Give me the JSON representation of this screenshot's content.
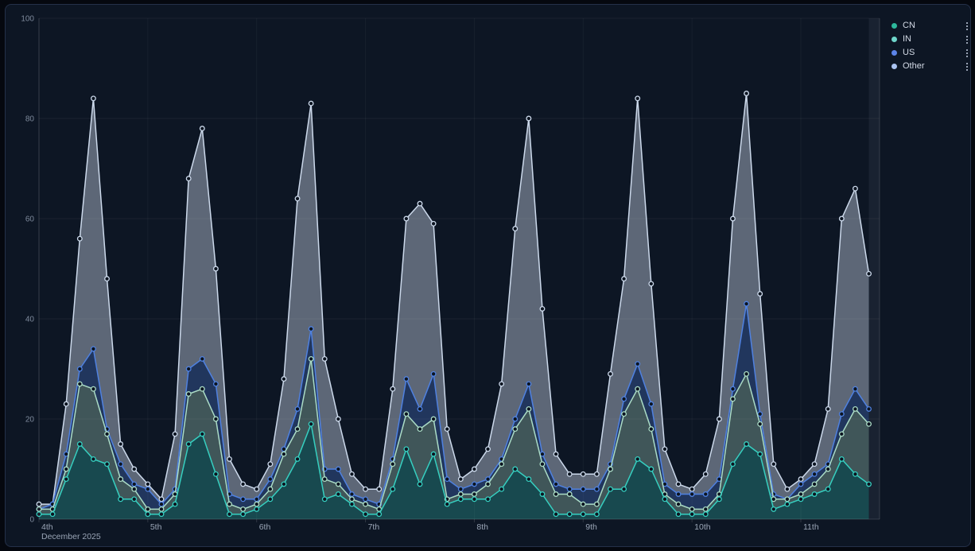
{
  "panel": {
    "title": ""
  },
  "legend": {
    "position": "top-right",
    "items": [
      {
        "label": "CN",
        "dot_color": "#2db89c"
      },
      {
        "label": "IN",
        "dot_color": "#6fd6cb"
      },
      {
        "label": "US",
        "dot_color": "#5c84e8"
      },
      {
        "label": "Other",
        "dot_color": "#abc4f2"
      }
    ],
    "action_icon": "vertical-dots"
  },
  "axes": {
    "y_tick_labels": [
      "0",
      "20",
      "40",
      "60",
      "80",
      "100"
    ],
    "x_tick_labels": [
      "4th",
      "5th",
      "6th",
      "7th",
      "8th",
      "9th",
      "10th",
      "11th"
    ],
    "x_context_label": "December 2025",
    "y_label_color": "#7e8a9c",
    "x_label_color": "#9aa5b6"
  },
  "chart_data": {
    "type": "area",
    "stacked": true,
    "title": "",
    "xlabel": "December 2025",
    "ylabel": "",
    "ylim": [
      0,
      100
    ],
    "y_ticks": [
      0,
      20,
      40,
      60,
      80,
      100
    ],
    "grid": true,
    "x_start": "2025-12-04 00:00",
    "x_interval_hours": 3,
    "points_per_day": 8,
    "x_tick_labels": [
      "4th",
      "5th",
      "6th",
      "7th",
      "8th",
      "9th",
      "10th",
      "11th"
    ],
    "legend_position": "top-right",
    "series": [
      {
        "name": "CN",
        "line_color": "#36cfc0",
        "fill_color": "rgba(54,207,192,0.28)",
        "values": [
          1,
          1,
          8,
          15,
          12,
          11,
          4,
          4,
          1,
          1,
          3,
          15,
          17,
          9,
          1,
          1,
          2,
          4,
          7,
          12,
          19,
          4,
          5,
          3,
          1,
          1,
          6,
          14,
          7,
          13,
          3,
          4,
          4,
          4,
          6,
          10,
          8,
          5,
          1,
          1,
          1,
          1,
          6,
          6,
          12,
          10,
          4,
          1,
          1,
          1,
          4,
          11,
          15,
          13,
          2,
          3,
          4,
          5,
          6,
          12,
          9,
          7
        ]
      },
      {
        "name": "IN",
        "line_color": "#abdcc6",
        "fill_color": "rgba(171,220,198,0.33)",
        "values": [
          1,
          1,
          2,
          12,
          14,
          6,
          4,
          2,
          1,
          1,
          2,
          10,
          9,
          11,
          2,
          1,
          1,
          2,
          6,
          6,
          13,
          4,
          2,
          1,
          2,
          1,
          5,
          7,
          11,
          7,
          1,
          1,
          1,
          3,
          5,
          8,
          14,
          6,
          4,
          4,
          2,
          2,
          4,
          15,
          14,
          8,
          1,
          2,
          1,
          1,
          1,
          13,
          14,
          6,
          2,
          1,
          1,
          2,
          4,
          5,
          13,
          12
        ]
      },
      {
        "name": "US",
        "line_color": "#4f81e0",
        "fill_color": "rgba(79,129,224,0.30)",
        "values": [
          0,
          1,
          3,
          3,
          8,
          1,
          3,
          1,
          4,
          1,
          1,
          5,
          6,
          7,
          2,
          2,
          1,
          2,
          1,
          4,
          6,
          2,
          3,
          1,
          1,
          1,
          1,
          7,
          4,
          9,
          4,
          1,
          2,
          1,
          1,
          2,
          5,
          2,
          2,
          1,
          3,
          3,
          1,
          3,
          5,
          5,
          2,
          2,
          3,
          3,
          3,
          2,
          14,
          2,
          1,
          0,
          2,
          2,
          1,
          4,
          4,
          3
        ]
      },
      {
        "name": "Other",
        "line_color": "#ccd9eb",
        "fill_color": "rgba(204,217,235,0.42)",
        "values": [
          1,
          0,
          10,
          26,
          50,
          30,
          4,
          3,
          1,
          1,
          11,
          38,
          46,
          23,
          7,
          3,
          2,
          3,
          14,
          42,
          45,
          22,
          10,
          4,
          2,
          3,
          14,
          32,
          41,
          30,
          10,
          2,
          3,
          6,
          15,
          38,
          53,
          29,
          6,
          3,
          3,
          3,
          18,
          24,
          53,
          24,
          7,
          2,
          1,
          4,
          12,
          34,
          42,
          24,
          6,
          2,
          1,
          2,
          11,
          39,
          40,
          27
        ]
      }
    ]
  }
}
